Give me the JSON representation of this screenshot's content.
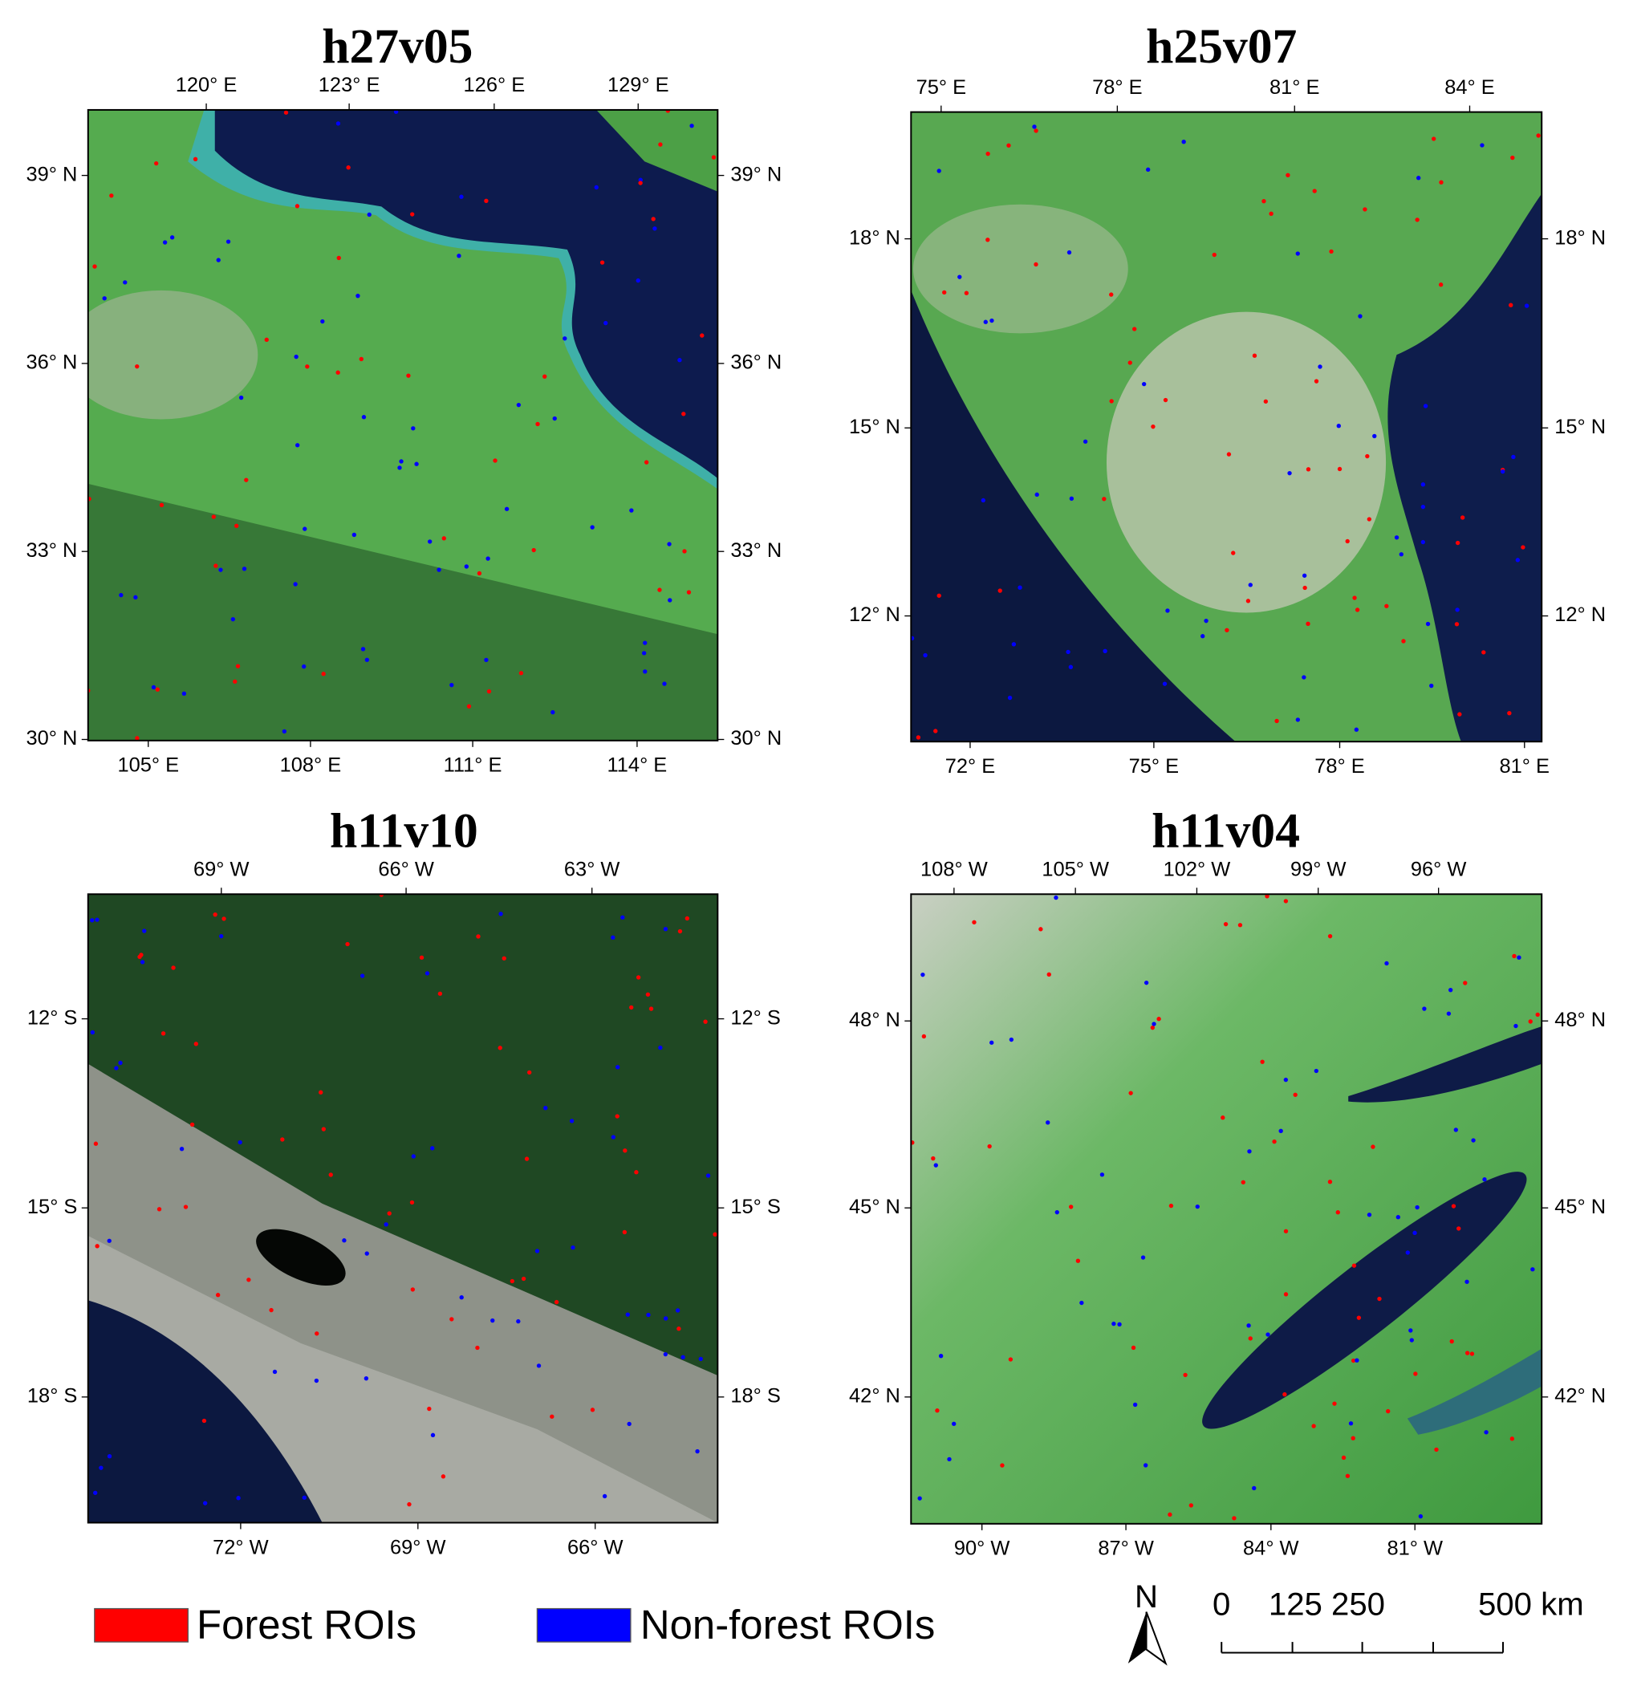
{
  "panels": [
    {
      "title": "h27v05",
      "top_labels": [
        "120° E",
        "123° E",
        "126° E",
        "129° E"
      ],
      "bottom_labels": [
        "105° E",
        "108° E",
        "111° E",
        "114° E"
      ],
      "lat_labels": [
        "39° N",
        "36° N",
        "33° N",
        "30° N"
      ]
    },
    {
      "title": "h25v07",
      "top_labels": [
        "75° E",
        "78° E",
        "81° E",
        "84° E"
      ],
      "bottom_labels": [
        "72° E",
        "75° E",
        "78° E",
        "81° E"
      ],
      "lat_labels": [
        "18° N",
        "15° N",
        "12° N"
      ]
    },
    {
      "title": "h11v10",
      "top_labels": [
        "69° W",
        "66° W",
        "63° W"
      ],
      "bottom_labels": [
        "72° W",
        "69° W",
        "66° W"
      ],
      "lat_labels": [
        "12° S",
        "15° S",
        "18° S"
      ]
    },
    {
      "title": "h11v04",
      "top_labels": [
        "108° W",
        "105° W",
        "102° W",
        "99° W",
        "96° W"
      ],
      "bottom_labels": [
        "90° W",
        "87° W",
        "84° W",
        "81° W"
      ],
      "lat_labels": [
        "48° N",
        "45° N",
        "42° N"
      ]
    }
  ],
  "legend": [
    {
      "label": "Forest ROIs",
      "color": "#ff0000"
    },
    {
      "label": "Non-forest ROIs",
      "color": "#0000ff"
    }
  ],
  "north_arrow": "N",
  "scale_bar": [
    "0",
    "125 250",
    "500 km"
  ]
}
